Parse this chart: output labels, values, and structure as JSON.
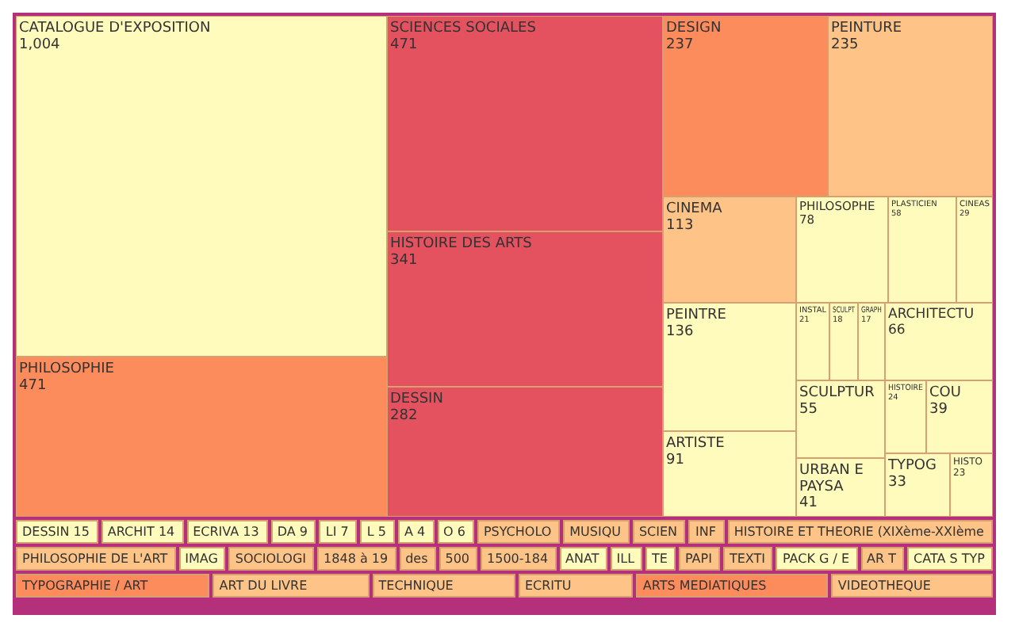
{
  "chart_data": {
    "type": "other",
    "categories": [
      "CATALOGUE D'EXPOSITION",
      "PHILOSOPHIE",
      "SCIENCES SOCIALES",
      "HISTOIRE DES ARTS",
      "DESSIN",
      "DESIGN",
      "PEINTURE",
      "CINEMA",
      "PEINTRE",
      "ARTISTE",
      "PHILOSOPHE",
      "PLASTICIEN",
      "CINEAS",
      "INSTAL",
      "SCULPT",
      "GRAPH",
      "DESSIN",
      "ARCHIT",
      "ECRIVA",
      "ARCHITECTU",
      "SCULPTUR",
      "URBAN E PAYSA",
      "HISTOIRE",
      "DA",
      "LI",
      "L",
      "A",
      "COU",
      "TYPOG",
      "HISTO",
      "O",
      "PSYCHOLO",
      "MUSIQU",
      "SCIEN",
      "INF",
      "HISTOIRE ET THEORIE (XIXème-XXIème",
      "PHILOSOPHIE DE L'ART",
      "IMAG",
      "SOCIOLOGI",
      "1848 à 19",
      "des",
      "500",
      "1500-184",
      "ANAT",
      "ILL",
      "TE",
      "PAPI",
      "TEXTI",
      "PACK G / E",
      "AR T",
      "CATA S TYP",
      "TYPOGRAPHIE / ART",
      "ART DU LIVRE",
      "TECHNIQUE",
      "ECRITU",
      "ARTS MEDIATIQUES",
      "VIDEOTHEQUE"
    ],
    "values": [
      1004,
      471,
      471,
      341,
      282,
      237,
      235,
      113,
      136,
      91,
      78,
      58,
      29,
      21,
      18,
      17,
      15,
      14,
      13,
      66,
      55,
      41,
      24,
      9,
      7,
      5,
      4,
      39,
      33,
      23,
      6,
      null,
      null,
      null,
      null,
      null,
      null,
      null,
      null,
      null,
      null,
      null,
      null,
      null,
      null,
      null,
      null,
      null,
      null,
      null,
      null,
      null,
      null,
      null,
      null,
      null,
      null
    ],
    "value_labels": [
      "1,004",
      "471",
      "471",
      "341",
      "282",
      "237",
      "235",
      "113",
      "136",
      "91",
      "78",
      "58",
      "29",
      "21",
      "18",
      "17",
      "15",
      "14",
      "13",
      "66",
      "55",
      "41",
      "24",
      "9",
      "7",
      "5",
      "4",
      "39",
      "33",
      "23",
      "6",
      null,
      null,
      null,
      null,
      null,
      null,
      null,
      null,
      null,
      null,
      null,
      null,
      null,
      null,
      null,
      null,
      null,
      null,
      null,
      null,
      null,
      null,
      null,
      null,
      null,
      null
    ],
    "colors": [
      "#fffbbd",
      "#fd8c5d",
      "#e4525f",
      "#e4525f",
      "#e4525f",
      "#fd8c5d",
      "#fdc387",
      "#fdc387",
      "#fffbbd",
      "#fffbbd",
      "#fffbbd",
      "#fffbbd",
      "#fffbbd",
      "#fffbbd",
      "#fffbbd",
      "#fffbbd",
      "#fffbbd",
      "#fffbbd",
      "#fffbbd",
      "#fffbbd",
      "#fffbbd",
      "#fffbbd",
      "#fffbbd",
      "#fffbbd",
      "#fffbbd",
      "#fffbbd",
      "#fffbbd",
      "#fffbbd",
      "#fffbbd",
      "#fffbbd",
      "#fffbbd",
      "#fdc387",
      "#fdc387",
      "#fdc387",
      "#fdc387",
      "#fdc387",
      "#fdc387",
      "#fffbbd",
      "#fdc387",
      "#fdc387",
      "#fdc387",
      "#fdc387",
      "#fdc387",
      "#fffbbd",
      "#fffbbd",
      "#fffbbd",
      "#fdc387",
      "#fdc387",
      "#fffbbd",
      "#fdc387",
      "#fffbbd",
      "#fd8c5d",
      "#fdc387",
      "#fdc387",
      "#fdc387",
      "#fd8c5d",
      "#fdc387"
    ]
  }
}
